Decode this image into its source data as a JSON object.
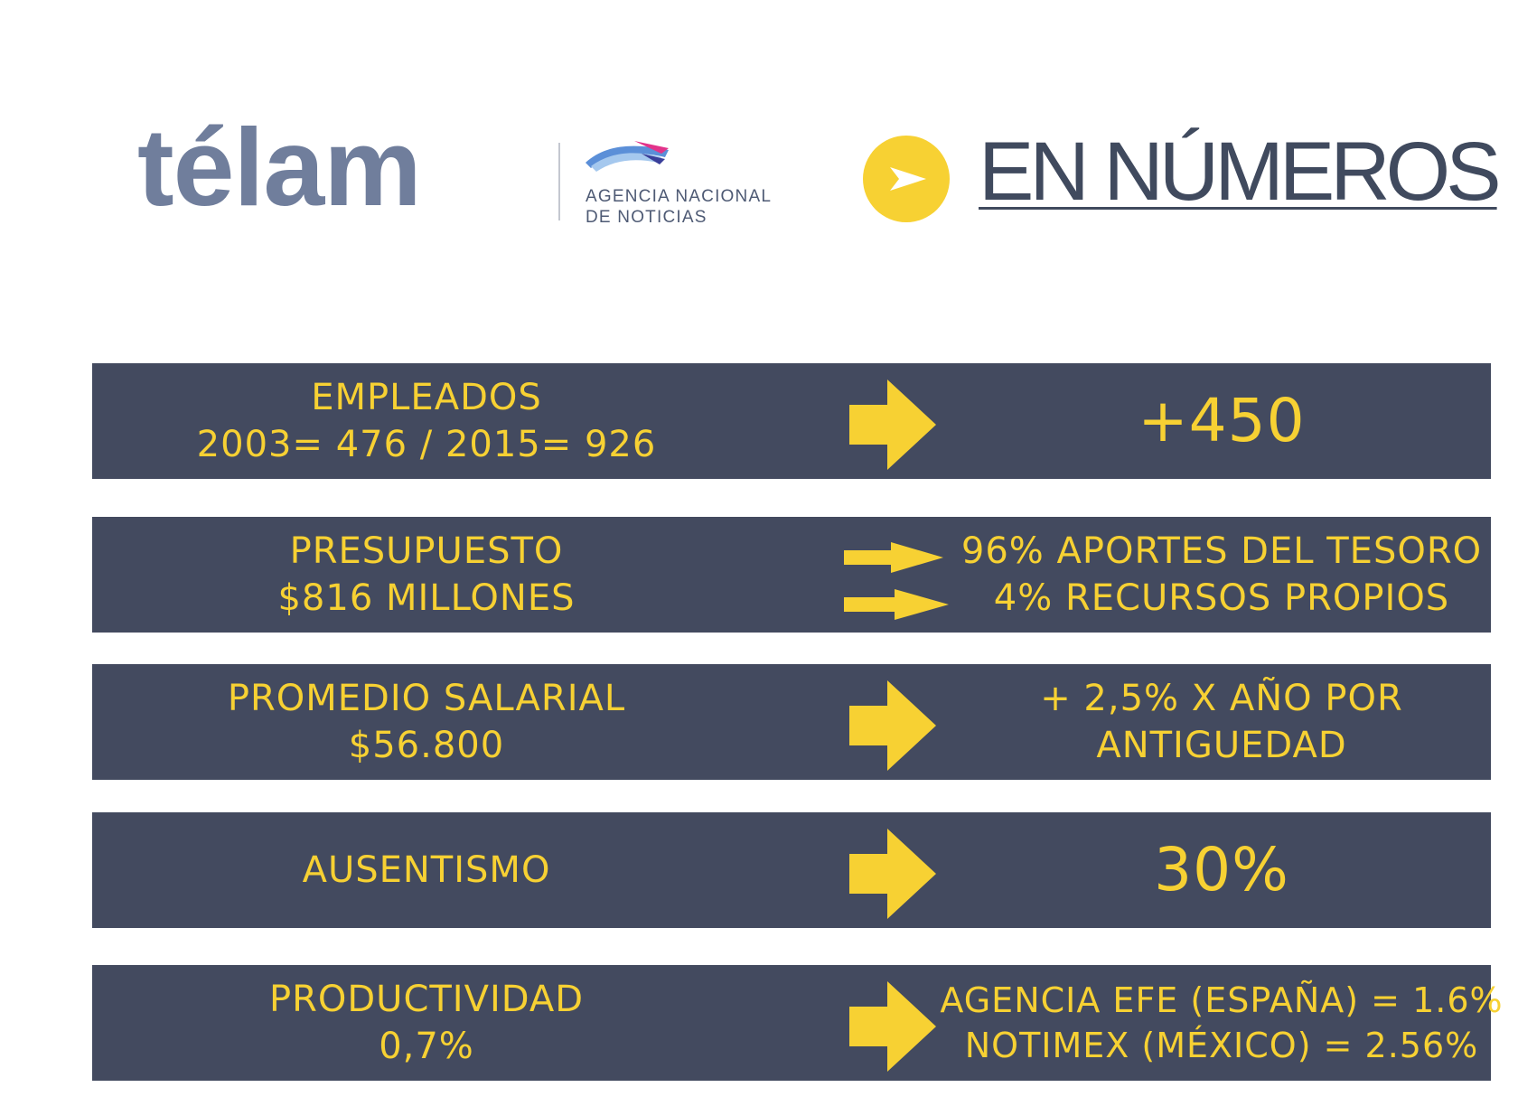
{
  "header": {
    "logo_text": "télam",
    "logo_tagline_line1": "AGENCIA NACIONAL",
    "logo_tagline_line2": "DE NOTICIAS",
    "title": "EN NÚMEROS"
  },
  "colors": {
    "row_background": "#434a5f",
    "accent_yellow": "#f7d133",
    "logo_gray": "#707e9c",
    "heading_text": "#404a5e"
  },
  "icons": {
    "badge": "play-arrow-icon",
    "row_pointer": "right-arrow-icon"
  },
  "rows": [
    {
      "label_line1": "EMPLEADOS",
      "label_line2": "2003= 476  / 2015= 926",
      "value": "+450"
    },
    {
      "label_line1": "PRESUPUESTO",
      "label_line2": "$816 MILLONES",
      "value_line1": "96% APORTES DEL TESORO",
      "value_line2": "4% RECURSOS PROPIOS"
    },
    {
      "label_line1": "PROMEDIO SALARIAL",
      "label_line2": "$56.800",
      "value_line1": "+ 2,5% X AÑO POR",
      "value_line2": "ANTIGUEDAD"
    },
    {
      "label_line1": "AUSENTISMO",
      "value": "30%"
    },
    {
      "label_line1": "PRODUCTIVIDAD",
      "label_line2": "0,7%",
      "value_line1": "AGENCIA EFE (ESPAÑA) = 1.6%",
      "value_line2": "NOTIMEX (MÉXICO) = 2.56%"
    }
  ]
}
